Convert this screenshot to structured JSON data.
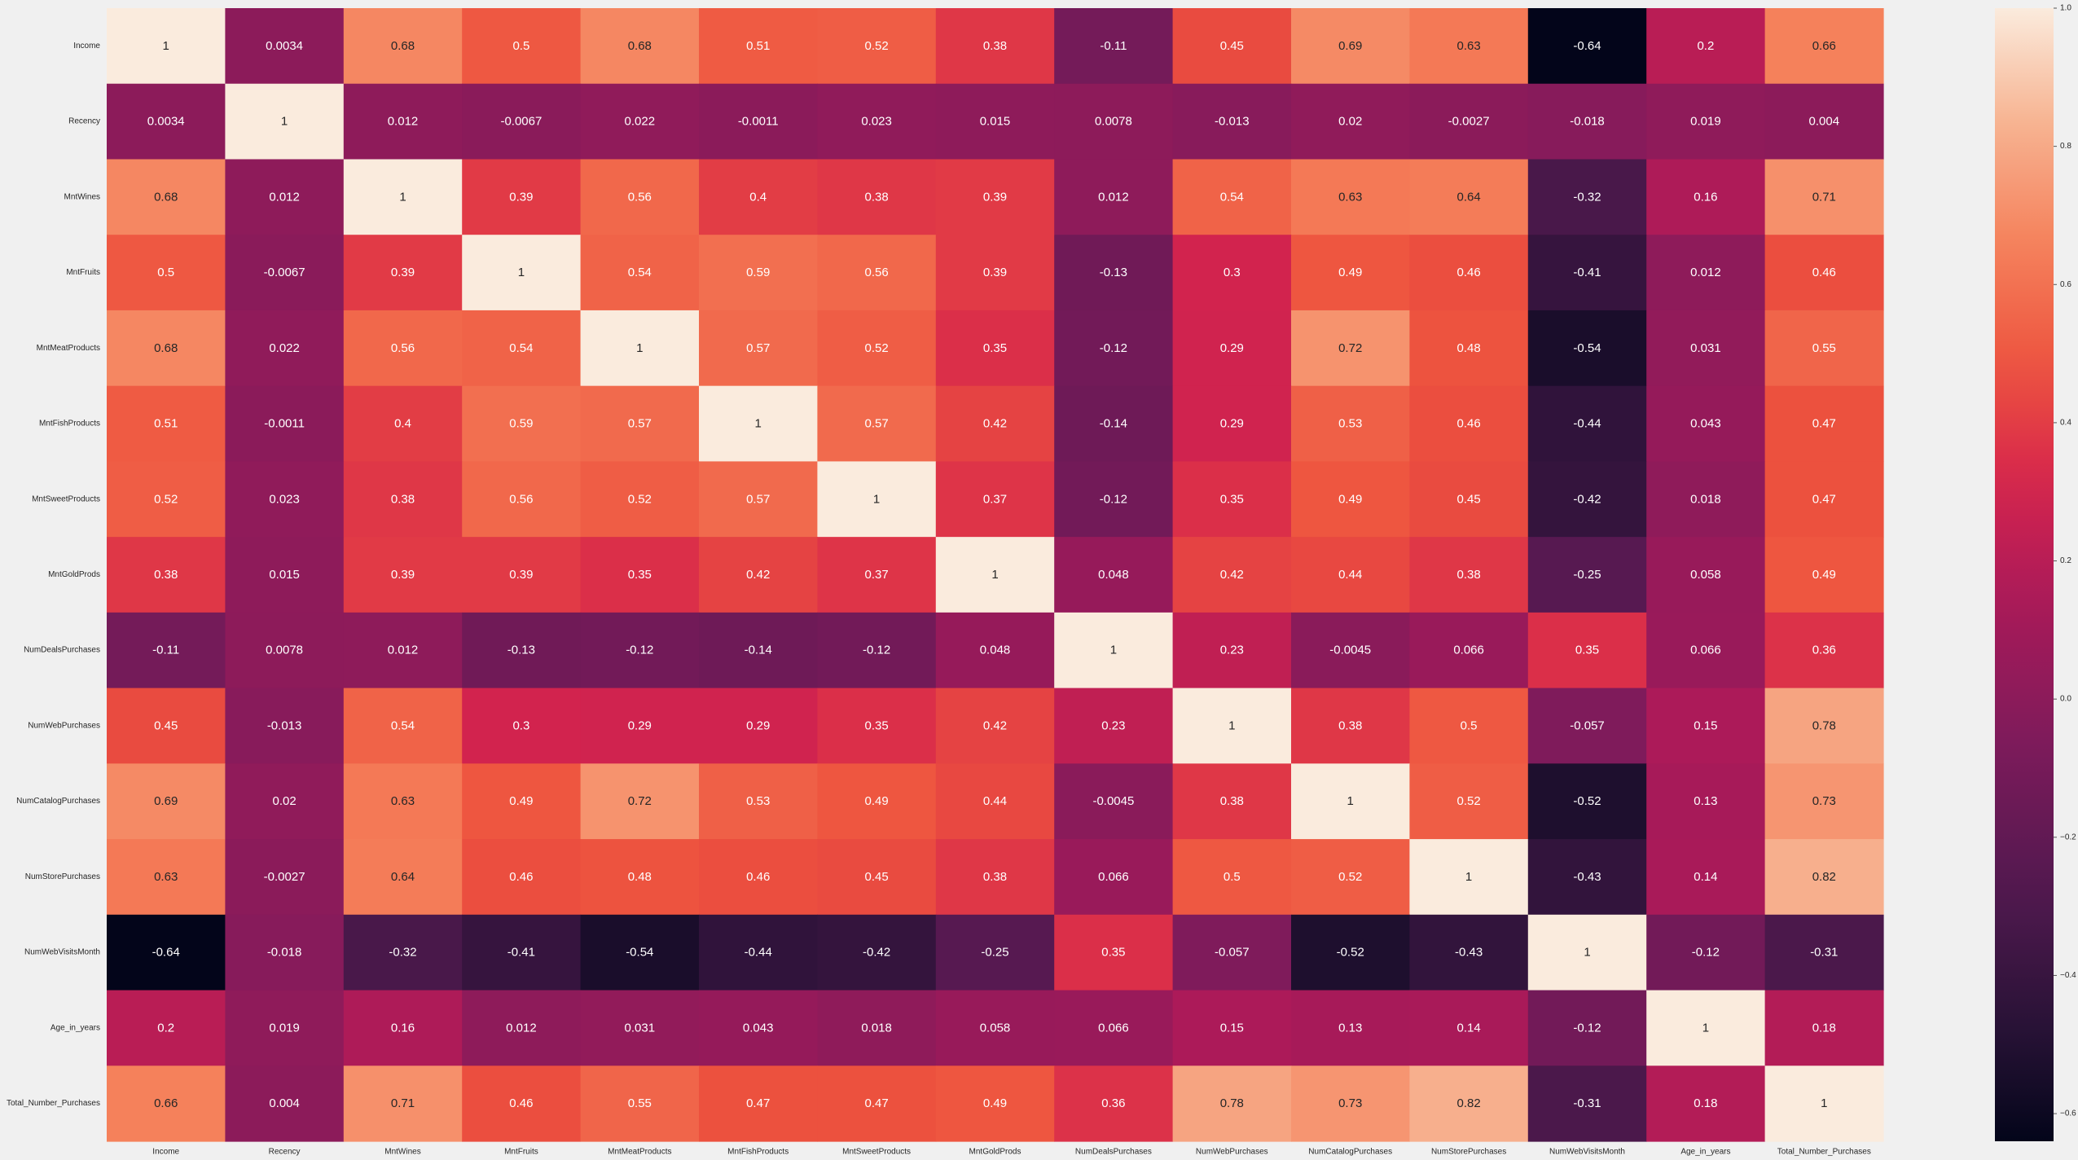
{
  "chart_data": {
    "type": "heatmap",
    "title": "",
    "xlabel": "",
    "ylabel": "",
    "rows": [
      "Income",
      "Recency",
      "MntWines",
      "MntFruits",
      "MntMeatProducts",
      "MntFishProducts",
      "MntSweetProducts",
      "MntGoldProds",
      "NumDealsPurchases",
      "NumWebPurchases",
      "NumCatalogPurchases",
      "NumStorePurchases",
      "NumWebVisitsMonth",
      "Age_in_years",
      "Total_Number_Purchases"
    ],
    "columns": [
      "Income",
      "Recency",
      "MntWines",
      "MntFruits",
      "MntMeatProducts",
      "MntFishProducts",
      "MntSweetProducts",
      "MntGoldProds",
      "NumDealsPurchases",
      "NumWebPurchases",
      "NumCatalogPurchases",
      "NumStorePurchases",
      "NumWebVisitsMonth",
      "Age_in_years",
      "Total_Number_Purchases"
    ],
    "values": [
      [
        1,
        0.0034,
        0.68,
        0.5,
        0.68,
        0.51,
        0.52,
        0.38,
        -0.11,
        0.45,
        0.69,
        0.63,
        -0.64,
        0.2,
        0.66
      ],
      [
        0.0034,
        1,
        0.012,
        -0.0067,
        0.022,
        -0.0011,
        0.023,
        0.015,
        0.0078,
        -0.013,
        0.02,
        -0.0027,
        -0.018,
        0.019,
        0.004
      ],
      [
        0.68,
        0.012,
        1,
        0.39,
        0.56,
        0.4,
        0.38,
        0.39,
        0.012,
        0.54,
        0.63,
        0.64,
        -0.32,
        0.16,
        0.71
      ],
      [
        0.5,
        -0.0067,
        0.39,
        1,
        0.54,
        0.59,
        0.56,
        0.39,
        -0.13,
        0.3,
        0.49,
        0.46,
        -0.41,
        0.012,
        0.46
      ],
      [
        0.68,
        0.022,
        0.56,
        0.54,
        1,
        0.57,
        0.52,
        0.35,
        -0.12,
        0.29,
        0.72,
        0.48,
        -0.54,
        0.031,
        0.55
      ],
      [
        0.51,
        -0.0011,
        0.4,
        0.59,
        0.57,
        1,
        0.57,
        0.42,
        -0.14,
        0.29,
        0.53,
        0.46,
        -0.44,
        0.043,
        0.47
      ],
      [
        0.52,
        0.023,
        0.38,
        0.56,
        0.52,
        0.57,
        1,
        0.37,
        -0.12,
        0.35,
        0.49,
        0.45,
        -0.42,
        0.018,
        0.47
      ],
      [
        0.38,
        0.015,
        0.39,
        0.39,
        0.35,
        0.42,
        0.37,
        1,
        0.048,
        0.42,
        0.44,
        0.38,
        -0.25,
        0.058,
        0.49
      ],
      [
        -0.11,
        0.0078,
        0.012,
        -0.13,
        -0.12,
        -0.14,
        -0.12,
        0.048,
        1,
        0.23,
        -0.0045,
        0.066,
        0.35,
        0.066,
        0.36
      ],
      [
        0.45,
        -0.013,
        0.54,
        0.3,
        0.29,
        0.29,
        0.35,
        0.42,
        0.23,
        1,
        0.38,
        0.5,
        -0.057,
        0.15,
        0.78
      ],
      [
        0.69,
        0.02,
        0.63,
        0.49,
        0.72,
        0.53,
        0.49,
        0.44,
        -0.0045,
        0.38,
        1,
        0.52,
        -0.52,
        0.13,
        0.73
      ],
      [
        0.63,
        -0.0027,
        0.64,
        0.46,
        0.48,
        0.46,
        0.45,
        0.38,
        0.066,
        0.5,
        0.52,
        1,
        -0.43,
        0.14,
        0.82
      ],
      [
        -0.64,
        -0.018,
        -0.32,
        -0.41,
        -0.54,
        -0.44,
        -0.42,
        -0.25,
        0.35,
        -0.057,
        -0.52,
        -0.43,
        1,
        -0.12,
        -0.31
      ],
      [
        0.2,
        0.019,
        0.16,
        0.012,
        0.031,
        0.043,
        0.018,
        0.058,
        0.066,
        0.15,
        0.13,
        0.14,
        -0.12,
        1,
        0.18
      ],
      [
        0.66,
        0.004,
        0.71,
        0.46,
        0.55,
        0.47,
        0.47,
        0.49,
        0.36,
        0.78,
        0.73,
        0.82,
        -0.31,
        0.18,
        1
      ]
    ],
    "colorbar": {
      "min": -0.64,
      "max": 1,
      "ticks": [
        1.0,
        0.8,
        0.6,
        0.4,
        0.2,
        0.0,
        -0.2,
        -0.4,
        -0.6
      ],
      "tick_labels": [
        "1.0",
        "0.8",
        "0.6",
        "0.4",
        "0.2",
        "0.0",
        "−0.2",
        "−0.4",
        "−0.6"
      ],
      "colormap": "rocket"
    },
    "annotations": true,
    "grid": false
  }
}
